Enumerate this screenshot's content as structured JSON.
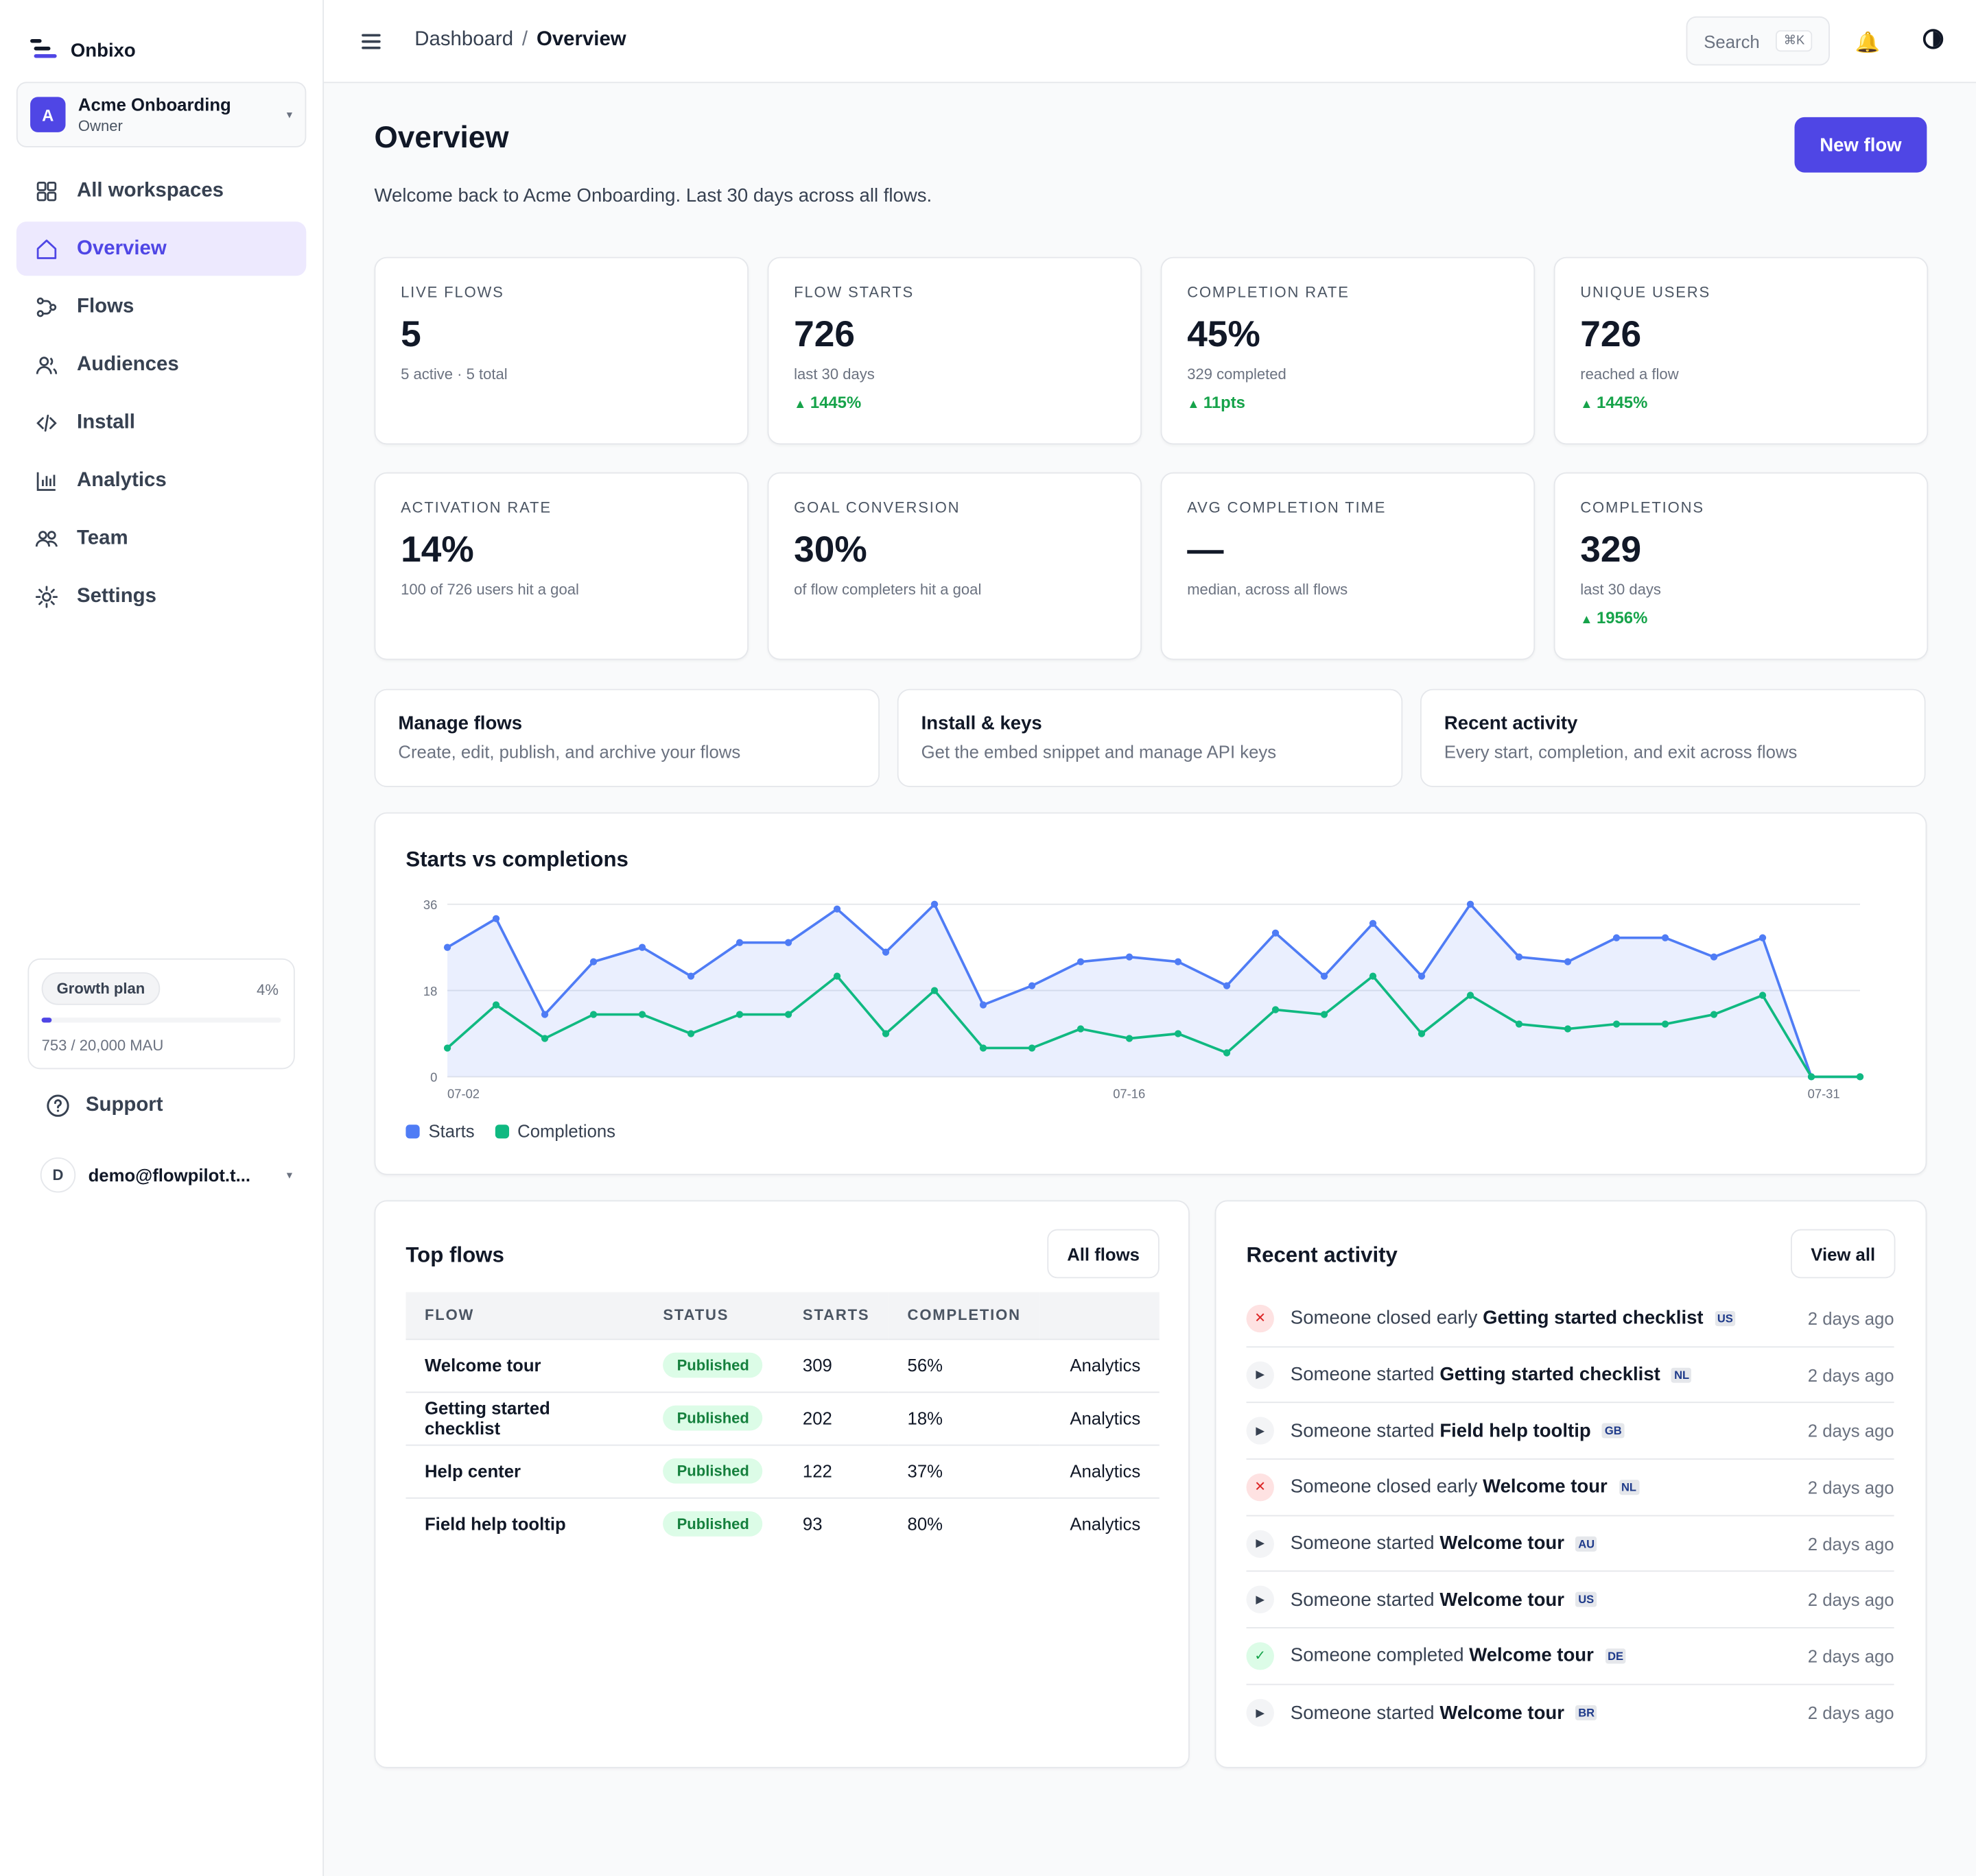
{
  "brand": {
    "name": "Onbixo"
  },
  "workspace": {
    "initial": "A",
    "name": "Acme Onboarding",
    "role": "Owner"
  },
  "nav": {
    "items": [
      {
        "label": "All workspaces",
        "icon": "grid-icon"
      },
      {
        "label": "Overview",
        "icon": "home-icon",
        "active": true
      },
      {
        "label": "Flows",
        "icon": "flows-icon"
      },
      {
        "label": "Audiences",
        "icon": "users-icon"
      },
      {
        "label": "Install",
        "icon": "code-icon"
      },
      {
        "label": "Analytics",
        "icon": "bar-chart-icon"
      },
      {
        "label": "Team",
        "icon": "team-icon"
      },
      {
        "label": "Settings",
        "icon": "gear-icon"
      }
    ]
  },
  "plan": {
    "name": "Growth plan",
    "percent_label": "4%",
    "usage_fraction": 0.04,
    "mau": "753 / 20,000 MAU"
  },
  "support": {
    "label": "Support"
  },
  "user": {
    "initial": "D",
    "email": "demo@flowpilot.t..."
  },
  "header": {
    "breadcrumb": {
      "parent": "Dashboard",
      "separator": "/",
      "current": "Overview"
    },
    "search": {
      "placeholder": "Search",
      "shortcut": "⌘K"
    }
  },
  "page": {
    "title": "Overview",
    "subtitle": "Welcome back to Acme Onboarding. Last 30 days across all flows.",
    "primary_button": "New flow"
  },
  "stats": [
    {
      "label": "Live flows",
      "value": "5",
      "sub": "5 active · 5 total",
      "delta": ""
    },
    {
      "label": "Flow starts",
      "value": "726",
      "sub": "last 30 days",
      "delta": "1445%"
    },
    {
      "label": "Completion rate",
      "value": "45%",
      "sub": "329 completed",
      "delta": "11pts"
    },
    {
      "label": "Unique users",
      "value": "726",
      "sub": "reached a flow",
      "delta": "1445%"
    },
    {
      "label": "Activation rate",
      "value": "14%",
      "sub": "100 of 726 users hit a goal",
      "delta": ""
    },
    {
      "label": "Goal conversion",
      "value": "30%",
      "sub": "of flow completers hit a goal",
      "delta": ""
    },
    {
      "label": "Avg completion time",
      "value": "—",
      "sub": "median, across all flows",
      "delta": ""
    },
    {
      "label": "Completions",
      "value": "329",
      "sub": "last 30 days",
      "delta": "1956%"
    }
  ],
  "quick_links": [
    {
      "title": "Manage flows",
      "desc": "Create, edit, publish, and archive your flows"
    },
    {
      "title": "Install & keys",
      "desc": "Get the embed snippet and manage API keys"
    },
    {
      "title": "Recent activity",
      "desc": "Every start, completion, and exit across flows"
    }
  ],
  "chart_title": "Starts vs completions",
  "chart_data": {
    "type": "line",
    "title": "Starts vs completions",
    "x_tick_labels": [
      "07-02",
      "07-16",
      "07-31"
    ],
    "y_ticks": [
      0,
      18,
      36
    ],
    "ylim": [
      0,
      36
    ],
    "grid": true,
    "legend": "bottom-left",
    "series": [
      {
        "name": "Starts",
        "color": "#4f7cf5",
        "area": true,
        "values": [
          27,
          33,
          13,
          24,
          27,
          21,
          28,
          28,
          35,
          26,
          36,
          15,
          19,
          24,
          25,
          24,
          19,
          30,
          21,
          32,
          21,
          36,
          25,
          24,
          29,
          29,
          25,
          29,
          0,
          0
        ]
      },
      {
        "name": "Completions",
        "color": "#10b981",
        "area": false,
        "values": [
          6,
          15,
          8,
          13,
          13,
          9,
          13,
          13,
          21,
          9,
          18,
          6,
          6,
          10,
          8,
          9,
          5,
          14,
          13,
          21,
          9,
          17,
          11,
          10,
          11,
          11,
          13,
          17,
          0,
          0
        ]
      }
    ]
  },
  "top_flows": {
    "title": "Top flows",
    "button": "All flows",
    "columns": [
      "Flow",
      "Status",
      "Starts",
      "Completion",
      ""
    ],
    "rows": [
      {
        "flow": "Welcome tour",
        "status": "Published",
        "starts": "309",
        "completion": "56%",
        "action": "Analytics"
      },
      {
        "flow": "Getting started checklist",
        "status": "Published",
        "starts": "202",
        "completion": "18%",
        "action": "Analytics"
      },
      {
        "flow": "Help center",
        "status": "Published",
        "starts": "122",
        "completion": "37%",
        "action": "Analytics"
      },
      {
        "flow": "Field help tooltip",
        "status": "Published",
        "starts": "93",
        "completion": "80%",
        "action": "Analytics"
      }
    ]
  },
  "recent_activity": {
    "title": "Recent activity",
    "button": "View all",
    "items": [
      {
        "type": "closed",
        "icon": "x-icon",
        "prefix": "Someone closed early",
        "flow": "Getting started checklist",
        "flag": "us-flag-icon",
        "time": "2 days ago"
      },
      {
        "type": "started",
        "icon": "play-icon",
        "prefix": "Someone started",
        "flow": "Getting started checklist",
        "flag": "nl-flag-icon",
        "time": "2 days ago"
      },
      {
        "type": "started",
        "icon": "play-icon",
        "prefix": "Someone started",
        "flow": "Field help tooltip",
        "flag": "gb-flag-icon",
        "time": "2 days ago"
      },
      {
        "type": "closed",
        "icon": "x-icon",
        "prefix": "Someone closed early",
        "flow": "Welcome tour",
        "flag": "nl-flag-icon",
        "time": "2 days ago"
      },
      {
        "type": "started",
        "icon": "play-icon",
        "prefix": "Someone started",
        "flow": "Welcome tour",
        "flag": "au-flag-icon",
        "time": "2 days ago"
      },
      {
        "type": "started",
        "icon": "play-icon",
        "prefix": "Someone started",
        "flow": "Welcome tour",
        "flag": "us-flag-icon",
        "time": "2 days ago"
      },
      {
        "type": "completed",
        "icon": "check-icon",
        "prefix": "Someone completed",
        "flow": "Welcome tour",
        "flag": "de-flag-icon",
        "time": "2 days ago"
      },
      {
        "type": "started",
        "icon": "play-icon",
        "prefix": "Someone started",
        "flow": "Welcome tour",
        "flag": "br-flag-icon",
        "time": "2 days ago"
      }
    ]
  }
}
